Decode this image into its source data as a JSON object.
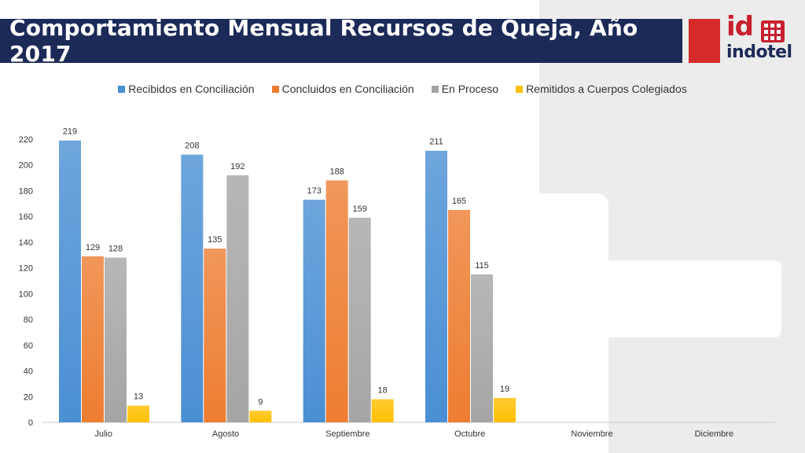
{
  "header": {
    "title": "Comportamiento Mensual Recursos de Queja, Año 2017"
  },
  "logo": {
    "mark": "id",
    "word": "indotel"
  },
  "colors": {
    "header_bg": "#1b2a57",
    "accent_red": "#c8202f"
  },
  "chart_data": {
    "type": "bar",
    "categories": [
      "Julio",
      "Agosto",
      "Septiembre",
      "Octubre",
      "Noviembre",
      "Diciembre"
    ],
    "series": [
      {
        "name": "Recibidos en Conciliación",
        "color": "#4a8fd4",
        "values": [
          219,
          208,
          173,
          211,
          null,
          null
        ]
      },
      {
        "name": "Concluidos en Conciliación",
        "color": "#ed7d31",
        "values": [
          129,
          135,
          188,
          165,
          null,
          null
        ]
      },
      {
        "name": "En Proceso",
        "color": "#a5a5a5",
        "values": [
          128,
          192,
          159,
          115,
          null,
          null
        ]
      },
      {
        "name": "Remitidos a Cuerpos Colegiados",
        "color": "#ffc000",
        "values": [
          13,
          9,
          18,
          19,
          null,
          null
        ]
      }
    ],
    "ylim": [
      0,
      220
    ],
    "yticks": [
      0,
      20,
      40,
      60,
      80,
      100,
      120,
      140,
      160,
      180,
      200,
      220
    ],
    "legend_position": "top",
    "grid": false
  }
}
